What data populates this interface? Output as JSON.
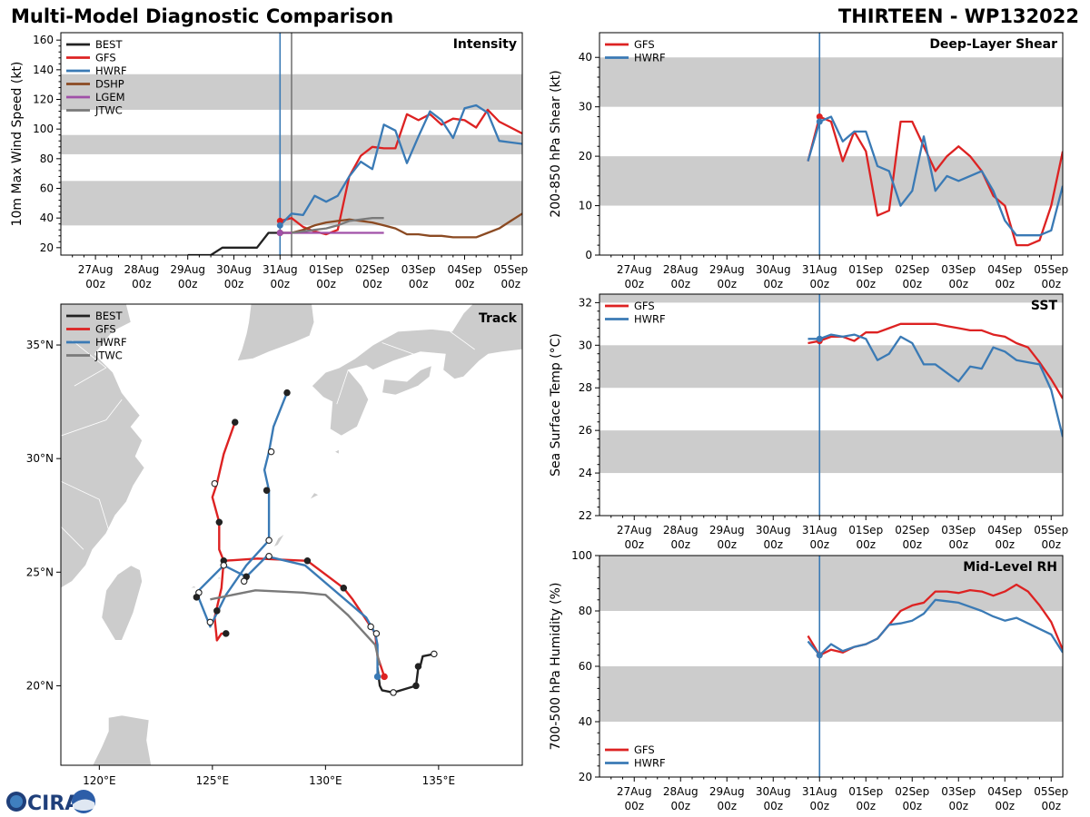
{
  "header": {
    "title_left": "Multi-Model Diagnostic Comparison",
    "title_right": "THIRTEEN - WP132022"
  },
  "logo": {
    "text": "CIRA"
  },
  "colors": {
    "BEST": "#222222",
    "GFS": "#dd2222",
    "HWRF": "#3a7ab5",
    "DSHP": "#8b4a22",
    "LGEM": "#a050a8",
    "JTWC": "#7a7a7a",
    "band": "#cccccc",
    "land": "#cccccc",
    "vline": "#3a7ab5",
    "vline2": "#777777"
  },
  "time_ticks": [
    {
      "day": 0,
      "label1": "27Aug",
      "label2": "00z"
    },
    {
      "day": 1,
      "label1": "28Aug",
      "label2": "00z"
    },
    {
      "day": 2,
      "label1": "29Aug",
      "label2": "00z"
    },
    {
      "day": 3,
      "label1": "30Aug",
      "label2": "00z"
    },
    {
      "day": 4,
      "label1": "31Aug",
      "label2": "00z"
    },
    {
      "day": 5,
      "label1": "01Sep",
      "label2": "00z"
    },
    {
      "day": 6,
      "label1": "02Sep",
      "label2": "00z"
    },
    {
      "day": 7,
      "label1": "03Sep",
      "label2": "00z"
    },
    {
      "day": 8,
      "label1": "04Sep",
      "label2": "00z"
    },
    {
      "day": 9,
      "label1": "05Sep",
      "label2": "00z"
    }
  ],
  "chart_data": [
    {
      "id": "intensity",
      "type": "line",
      "title": "Intensity",
      "ylabel": "10m Max Wind Speed (kt)",
      "xlim": [
        -0.75,
        9.25
      ],
      "ylim": [
        15,
        165
      ],
      "yticks": [
        20,
        40,
        60,
        80,
        100,
        120,
        140,
        160
      ],
      "bands": [
        [
          35,
          65
        ],
        [
          83,
          96
        ],
        [
          113,
          137
        ]
      ],
      "vlines": [
        {
          "x": 4.0,
          "color": "vline"
        },
        {
          "x": 4.25,
          "color": "vline2"
        }
      ],
      "legend": [
        "BEST",
        "GFS",
        "HWRF",
        "DSHP",
        "LGEM",
        "JTWC"
      ],
      "legend_position": "top-left",
      "series": [
        {
          "name": "BEST",
          "x": [
            2.0,
            2.5,
            2.75,
            3.5,
            3.75,
            4.0,
            4.25
          ],
          "y": [
            15,
            15,
            20,
            20,
            30,
            30,
            30
          ]
        },
        {
          "name": "GFS",
          "x": [
            4.0,
            4.25,
            4.5,
            4.75,
            5.0,
            5.25,
            5.5,
            5.75,
            6.0,
            6.25,
            6.5,
            6.75,
            7.0,
            7.25,
            7.5,
            7.75,
            8.0,
            8.25,
            8.5,
            8.75,
            9.0,
            9.25
          ],
          "y": [
            38,
            40,
            34,
            31,
            29,
            32,
            68,
            82,
            88,
            87,
            87,
            110,
            106,
            110,
            103,
            107,
            106,
            101,
            113,
            105,
            101,
            97
          ]
        },
        {
          "name": "HWRF",
          "x": [
            4.0,
            4.25,
            4.5,
            4.75,
            5.0,
            5.25,
            5.5,
            5.75,
            6.0,
            6.25,
            6.5,
            6.75,
            7.0,
            7.25,
            7.5,
            7.75,
            8.0,
            8.25,
            8.5,
            8.75,
            9.0,
            9.25
          ],
          "y": [
            35,
            43,
            42,
            55,
            51,
            55,
            68,
            78,
            73,
            103,
            99,
            77,
            95,
            112,
            106,
            94,
            114,
            116,
            111,
            92,
            91,
            90
          ]
        },
        {
          "name": "DSHP",
          "x": [
            4.0,
            4.25,
            4.5,
            4.75,
            5.0,
            5.25,
            5.5,
            5.75,
            6.0,
            6.25,
            6.5,
            6.75,
            7.0,
            7.25,
            7.5,
            7.75,
            8.0,
            8.25,
            8.5,
            8.75,
            9.0,
            9.25
          ],
          "y": [
            30,
            30,
            32,
            35,
            37,
            38,
            39,
            38,
            37,
            35,
            33,
            29,
            29,
            28,
            28,
            27,
            27,
            27,
            30,
            33,
            38,
            43
          ]
        },
        {
          "name": "LGEM",
          "x": [
            4.0,
            4.25,
            4.5,
            4.75,
            5.0,
            5.25,
            5.5,
            5.75,
            6.0,
            6.25
          ],
          "y": [
            30,
            30,
            30,
            30,
            30,
            30,
            30,
            30,
            30,
            30
          ]
        },
        {
          "name": "JTWC",
          "x": [
            4.25,
            4.5,
            4.75,
            5.0,
            5.25,
            5.5,
            5.75,
            6.0,
            6.25
          ],
          "y": [
            30,
            31,
            32,
            33,
            35,
            38,
            39,
            40,
            40
          ]
        }
      ]
    },
    {
      "id": "shear",
      "type": "line",
      "title": "Deep-Layer Shear",
      "ylabel": "200-850 hPa Shear (kt)",
      "xlim": [
        -0.75,
        9.25
      ],
      "ylim": [
        0,
        45
      ],
      "yticks": [
        0,
        10,
        20,
        30,
        40
      ],
      "bands": [
        [
          10,
          20
        ],
        [
          30,
          40
        ]
      ],
      "vlines": [
        {
          "x": 4.0,
          "color": "vline"
        }
      ],
      "legend": [
        "GFS",
        "HWRF"
      ],
      "legend_position": "top-left",
      "series": [
        {
          "name": "GFS",
          "x": [
            3.75,
            4.0,
            4.25,
            4.5,
            4.75,
            5.0,
            5.25,
            5.5,
            5.75,
            6.0,
            6.25,
            6.5,
            6.75,
            7.0,
            7.25,
            7.5,
            7.75,
            8.0,
            8.25,
            8.5,
            8.75,
            9.0,
            9.25
          ],
          "y": [
            19,
            28,
            27,
            19,
            25,
            21,
            8,
            9,
            27,
            27,
            22,
            17,
            20,
            22,
            20,
            17,
            12,
            10,
            2,
            2,
            3,
            10,
            21
          ]
        },
        {
          "name": "HWRF",
          "x": [
            3.75,
            4.0,
            4.25,
            4.5,
            4.75,
            5.0,
            5.25,
            5.5,
            5.75,
            6.0,
            6.25,
            6.5,
            6.75,
            7.0,
            7.25,
            7.5,
            7.75,
            8.0,
            8.25,
            8.5,
            8.75,
            9.0,
            9.25
          ],
          "y": [
            19,
            27,
            28,
            23,
            25,
            25,
            18,
            17,
            10,
            13,
            24,
            13,
            16,
            15,
            16,
            17,
            13,
            7,
            4,
            4,
            4,
            5,
            14
          ]
        }
      ]
    },
    {
      "id": "sst",
      "type": "line",
      "title": "SST",
      "ylabel": "Sea Surface Temp (°C)",
      "xlim": [
        -0.75,
        9.25
      ],
      "ylim": [
        22,
        32.4
      ],
      "yticks": [
        22,
        24,
        26,
        28,
        30,
        32
      ],
      "bands": [
        [
          24,
          26
        ],
        [
          28,
          30
        ],
        [
          32,
          32.4
        ]
      ],
      "vlines": [
        {
          "x": 4.0,
          "color": "vline"
        }
      ],
      "legend": [
        "GFS",
        "HWRF"
      ],
      "legend_position": "top-left",
      "series": [
        {
          "name": "GFS",
          "x": [
            3.75,
            4.0,
            4.25,
            4.5,
            4.75,
            5.0,
            5.25,
            5.5,
            5.75,
            6.0,
            6.25,
            6.5,
            6.75,
            7.0,
            7.25,
            7.5,
            7.75,
            8.0,
            8.25,
            8.5,
            8.75,
            9.0,
            9.25
          ],
          "y": [
            30.1,
            30.2,
            30.4,
            30.4,
            30.2,
            30.6,
            30.6,
            30.8,
            31.0,
            31.0,
            31.0,
            31.0,
            30.9,
            30.8,
            30.7,
            30.7,
            30.5,
            30.4,
            30.1,
            29.9,
            29.2,
            28.4,
            27.5
          ]
        },
        {
          "name": "HWRF",
          "x": [
            3.75,
            4.0,
            4.25,
            4.5,
            4.75,
            5.0,
            5.25,
            5.5,
            5.75,
            6.0,
            6.25,
            6.5,
            6.75,
            7.0,
            7.25,
            7.5,
            7.75,
            8.0,
            8.25,
            8.5,
            8.75,
            9.0,
            9.25
          ],
          "y": [
            30.3,
            30.3,
            30.5,
            30.4,
            30.5,
            30.3,
            29.3,
            29.6,
            30.4,
            30.1,
            29.1,
            29.1,
            28.7,
            28.3,
            29.0,
            28.9,
            29.9,
            29.7,
            29.3,
            29.2,
            29.1,
            27.9,
            25.7
          ]
        }
      ]
    },
    {
      "id": "rh",
      "type": "line",
      "title": "Mid-Level RH",
      "ylabel": "700-500 hPa Humidity (%)",
      "xlim": [
        -0.75,
        9.25
      ],
      "ylim": [
        20,
        100
      ],
      "yticks": [
        20,
        40,
        60,
        80,
        100
      ],
      "bands": [
        [
          40,
          60
        ],
        [
          80,
          100
        ]
      ],
      "vlines": [
        {
          "x": 4.0,
          "color": "vline"
        }
      ],
      "legend": [
        "GFS",
        "HWRF"
      ],
      "legend_position": "bottom-left",
      "series": [
        {
          "name": "GFS",
          "x": [
            3.75,
            4.0,
            4.25,
            4.5,
            4.75,
            5.0,
            5.25,
            5.5,
            5.75,
            6.0,
            6.25,
            6.5,
            6.75,
            7.0,
            7.25,
            7.5,
            7.75,
            8.0,
            8.25,
            8.5,
            8.75,
            9.0,
            9.25
          ],
          "y": [
            71,
            64,
            66,
            65,
            67,
            68,
            70,
            75,
            80,
            82,
            83,
            87,
            87,
            86.5,
            87.5,
            87,
            85.5,
            87,
            89.5,
            87,
            82,
            76,
            66
          ]
        },
        {
          "name": "HWRF",
          "x": [
            3.75,
            4.0,
            4.25,
            4.5,
            4.75,
            5.0,
            5.25,
            5.5,
            5.75,
            6.0,
            6.25,
            6.5,
            6.75,
            7.0,
            7.25,
            7.5,
            7.75,
            8.0,
            8.25,
            8.5,
            8.75,
            9.0,
            9.25
          ],
          "y": [
            69,
            64,
            68,
            65.5,
            67,
            68,
            70,
            75,
            75.5,
            76.5,
            79,
            84,
            83.5,
            83,
            81.5,
            80,
            78,
            76.5,
            77.5,
            75.5,
            73.5,
            71.5,
            65
          ]
        }
      ]
    },
    {
      "id": "track",
      "type": "scatter",
      "title": "Track",
      "xlim": [
        118.3,
        138.7
      ],
      "ylim": [
        16.5,
        36.8
      ],
      "xticks": [
        {
          "v": 120,
          "label": "120°E"
        },
        {
          "v": 125,
          "label": "125°E"
        },
        {
          "v": 130,
          "label": "130°E"
        },
        {
          "v": 135,
          "label": "135°E"
        }
      ],
      "yticks": [
        {
          "v": 20,
          "label": "20°N"
        },
        {
          "v": 25,
          "label": "25°N"
        },
        {
          "v": 30,
          "label": "30°N"
        },
        {
          "v": 35,
          "label": "35°N"
        }
      ],
      "legend": [
        "BEST",
        "GFS",
        "HWRF",
        "JTWC"
      ],
      "legend_position": "top-left",
      "series": [
        {
          "name": "BEST",
          "lon": [
            134.8,
            134.3,
            134.2,
            134.1,
            134.0,
            133.0,
            132.5,
            132.4,
            132.3
          ],
          "lat": [
            21.4,
            21.3,
            20.9,
            20.8,
            20.0,
            19.7,
            19.8,
            20.0,
            20.8
          ],
          "markers": [
            {
              "lon": 134.8,
              "lat": 21.4,
              "fill": "open"
            },
            {
              "lon": 134.1,
              "lat": 20.85,
              "fill": "filled"
            },
            {
              "lon": 134.0,
              "lat": 20.0,
              "fill": "filled"
            },
            {
              "lon": 133.0,
              "lat": 19.7,
              "fill": "open"
            }
          ]
        },
        {
          "name": "GFS",
          "lon": [
            132.6,
            132.3,
            132.2,
            132.0,
            131.2,
            130.8,
            129.2,
            127.0,
            125.5,
            125.3,
            125.3,
            125.0,
            125.2,
            125.5,
            126.0
          ],
          "lat": [
            20.4,
            21.3,
            22.3,
            22.6,
            23.8,
            24.3,
            25.5,
            25.6,
            25.5,
            26.0,
            27.2,
            28.3,
            28.9,
            30.2,
            31.6
          ],
          "markers": [
            {
              "lon": 132.6,
              "lat": 20.4,
              "fill": "filled"
            },
            {
              "lon": 132.0,
              "lat": 22.6,
              "fill": "open"
            },
            {
              "lon": 130.8,
              "lat": 24.3,
              "fill": "filled"
            },
            {
              "lon": 129.2,
              "lat": 25.5,
              "fill": "filled"
            },
            {
              "lon": 125.5,
              "lat": 25.5,
              "fill": "filled"
            },
            {
              "lon": 125.3,
              "lat": 27.2,
              "fill": "filled"
            },
            {
              "lon": 125.1,
              "lat": 28.9,
              "fill": "open"
            },
            {
              "lon": 126.0,
              "lat": 31.6,
              "fill": "filled"
            }
          ]
        },
        {
          "name": "GFS-branch",
          "lon": [
            125.5,
            125.4,
            125.1,
            125.2,
            125.4,
            125.6
          ],
          "lat": [
            25.5,
            24.3,
            23.0,
            22.0,
            22.3,
            22.3
          ],
          "markers": [
            {
              "lon": 125.6,
              "lat": 22.3,
              "fill": "filled"
            },
            {
              "lon": 125.2,
              "lat": 23.3,
              "fill": "filled"
            }
          ]
        },
        {
          "name": "HWRF",
          "lon": [
            132.3,
            132.3,
            132.2,
            131.8,
            129.1,
            127.4,
            126.5,
            125.5,
            124.3,
            124.9,
            125.6,
            126.5,
            127.5,
            127.5,
            127.3,
            127.5,
            127.7,
            128.3
          ],
          "lat": [
            20.4,
            21.8,
            22.3,
            23.0,
            25.3,
            25.7,
            24.8,
            25.3,
            24.1,
            22.6,
            24.0,
            25.3,
            26.4,
            28.6,
            29.5,
            30.3,
            31.4,
            32.9
          ],
          "markers": [
            {
              "lon": 132.3,
              "lat": 20.4,
              "fill": "filled"
            },
            {
              "lon": 132.25,
              "lat": 22.3,
              "fill": "open"
            },
            {
              "lon": 127.5,
              "lat": 25.7,
              "fill": "open"
            },
            {
              "lon": 126.5,
              "lat": 24.8,
              "fill": "filled"
            },
            {
              "lon": 125.5,
              "lat": 25.3,
              "fill": "open"
            },
            {
              "lon": 124.4,
              "lat": 24.1,
              "fill": "open"
            },
            {
              "lon": 124.9,
              "lat": 22.8,
              "fill": "open"
            },
            {
              "lon": 126.4,
              "lat": 24.6,
              "fill": "open"
            },
            {
              "lon": 127.5,
              "lat": 26.4,
              "fill": "open"
            },
            {
              "lon": 127.4,
              "lat": 28.6,
              "fill": "filled"
            },
            {
              "lon": 127.6,
              "lat": 30.3,
              "fill": "open"
            },
            {
              "lon": 128.3,
              "lat": 32.9,
              "fill": "filled"
            }
          ]
        },
        {
          "name": "JTWC",
          "lon": [
            132.4,
            132.2,
            131.0,
            130.0,
            129.0,
            126.9,
            124.9
          ],
          "lat": [
            20.9,
            21.8,
            23.1,
            24.0,
            24.1,
            24.2,
            23.8
          ],
          "markers": [
            {
              "lon": 124.3,
              "lat": 23.9,
              "fill": "filled"
            }
          ]
        }
      ]
    }
  ]
}
